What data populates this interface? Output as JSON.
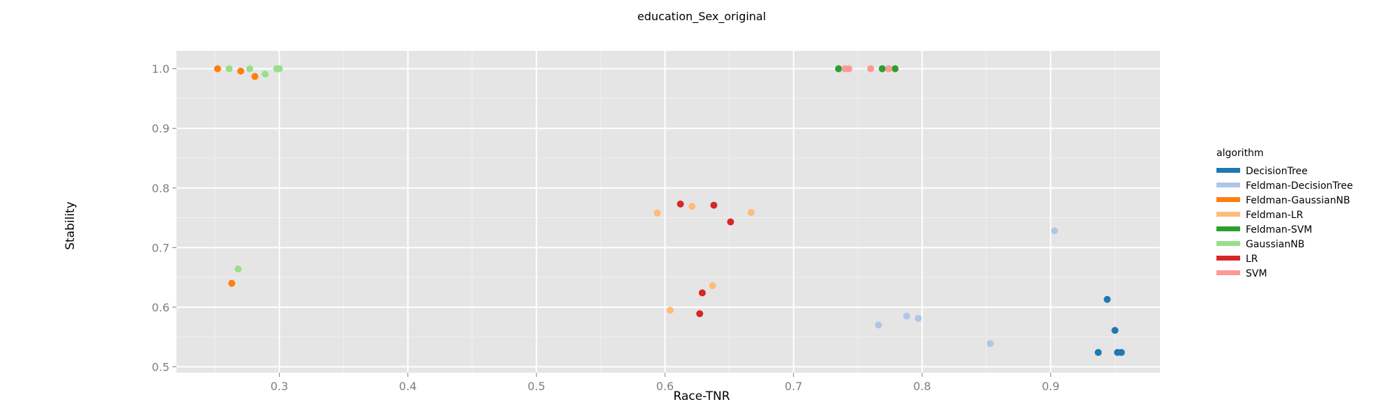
{
  "chart_data": {
    "type": "scatter",
    "title": "education_Sex_original",
    "xlabel": "Race-TNR",
    "ylabel": "Stability",
    "xlim": [
      0.22,
      0.985
    ],
    "ylim": [
      0.49,
      1.03
    ],
    "xticks": [
      0.3,
      0.4,
      0.5,
      0.6,
      0.7,
      0.8,
      0.9
    ],
    "xtick_labels": [
      "0.3",
      "0.4",
      "0.5",
      "0.6",
      "0.7",
      "0.8",
      "0.9"
    ],
    "yticks": [
      0.5,
      0.6,
      0.7,
      0.8,
      0.9,
      1.0
    ],
    "ytick_labels": [
      "0.5",
      "0.6",
      "0.7",
      "0.8",
      "0.9",
      "1.0"
    ],
    "grid": true,
    "legend_title": "algorithm",
    "legend_position": "right",
    "series": [
      {
        "name": "DecisionTree",
        "color": "#1f77b4",
        "points": [
          [
            0.944,
            0.613
          ],
          [
            0.95,
            0.561
          ],
          [
            0.937,
            0.524
          ],
          [
            0.952,
            0.524
          ],
          [
            0.955,
            0.524
          ]
        ]
      },
      {
        "name": "Feldman-DecisionTree",
        "color": "#aec7e8",
        "points": [
          [
            0.903,
            0.728
          ],
          [
            0.766,
            0.57
          ],
          [
            0.788,
            0.585
          ],
          [
            0.797,
            0.581
          ],
          [
            0.853,
            0.539
          ]
        ]
      },
      {
        "name": "Feldman-GaussianNB",
        "color": "#ff7f0e",
        "points": [
          [
            0.252,
            1.0
          ],
          [
            0.27,
            0.996
          ],
          [
            0.281,
            0.987
          ],
          [
            0.263,
            0.64
          ]
        ]
      },
      {
        "name": "Feldman-LR",
        "color": "#ffbb78",
        "points": [
          [
            0.594,
            0.758
          ],
          [
            0.621,
            0.769
          ],
          [
            0.667,
            0.759
          ],
          [
            0.637,
            0.636
          ],
          [
            0.604,
            0.595
          ]
        ]
      },
      {
        "name": "Feldman-SVM",
        "color": "#2ca02c",
        "points": [
          [
            0.735,
            1.0
          ],
          [
            0.769,
            1.0
          ],
          [
            0.779,
            1.0
          ]
        ]
      },
      {
        "name": "GaussianNB",
        "color": "#98df8a",
        "points": [
          [
            0.261,
            1.0
          ],
          [
            0.277,
            1.0
          ],
          [
            0.289,
            0.991
          ],
          [
            0.298,
            1.0
          ],
          [
            0.3,
            1.0
          ],
          [
            0.268,
            0.664
          ]
        ]
      },
      {
        "name": "LR",
        "color": "#d62728",
        "points": [
          [
            0.612,
            0.773
          ],
          [
            0.638,
            0.771
          ],
          [
            0.651,
            0.743
          ],
          [
            0.629,
            0.624
          ],
          [
            0.627,
            0.589
          ]
        ]
      },
      {
        "name": "SVM",
        "color": "#ff9896",
        "points": [
          [
            0.74,
            1.0
          ],
          [
            0.743,
            1.0
          ],
          [
            0.76,
            1.0
          ],
          [
            0.774,
            1.0
          ]
        ]
      }
    ]
  }
}
